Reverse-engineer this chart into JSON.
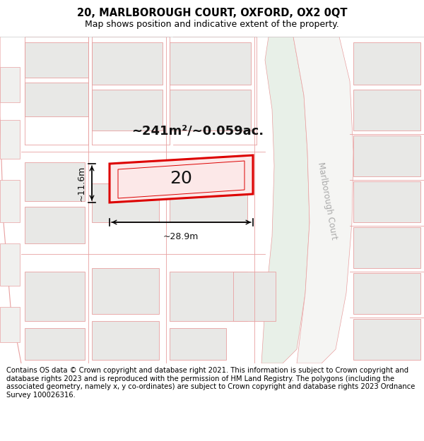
{
  "title_line1": "20, MARLBOROUGH COURT, OXFORD, OX2 0QT",
  "title_line2": "Map shows position and indicative extent of the property.",
  "footer_text": "Contains OS data © Crown copyright and database right 2021. This information is subject to Crown copyright and database rights 2023 and is reproduced with the permission of HM Land Registry. The polygons (including the associated geometry, namely x, y co-ordinates) are subject to Crown copyright and database rights 2023 Ordnance Survey 100026316.",
  "map_bg": "#f7f7f5",
  "plot_bg": "#ffffff",
  "building_fill": "#e8e8e6",
  "road_line_color": "#e8a0a0",
  "road_line_lw": 0.7,
  "highlight_color": "#dd0000",
  "highlight_fill": "#fce8e8",
  "road_fill": "#e8f0e8",
  "road_label_color": "#aaaaaa",
  "area_text": "~241m²/~0.059ac.",
  "plot_label": "20",
  "dim_width": "~28.9m",
  "dim_height": "~11.6m",
  "road_label": "Marlborough Court",
  "title_fontsize": 10.5,
  "subtitle_fontsize": 9,
  "footer_fontsize": 7.2,
  "area_fontsize": 13,
  "label_fontsize": 18,
  "dim_fontsize": 9
}
